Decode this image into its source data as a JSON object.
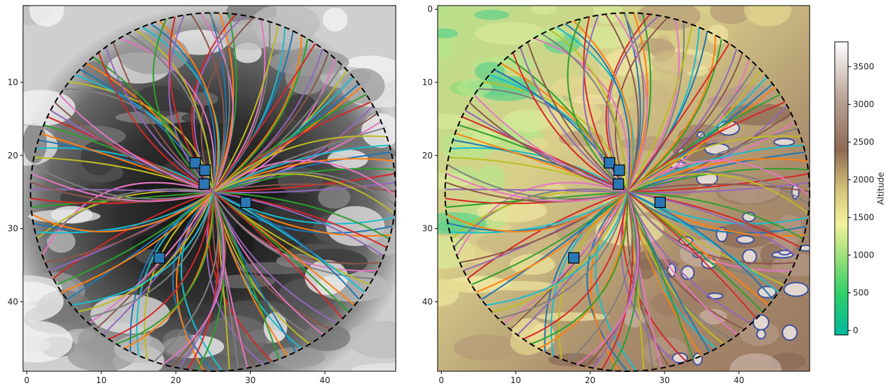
{
  "chart_data": [
    {
      "type": "heatmap",
      "panel": "left",
      "colormap": "greys",
      "xlim": [
        -0.5,
        49.5
      ],
      "ylim_inverted": [
        49.5,
        -0.5
      ],
      "x_ticks": [
        0,
        10,
        20,
        30,
        40
      ],
      "y_ticks": [
        10,
        20,
        30,
        40
      ],
      "x_tick_labels": [
        "0",
        "10",
        "20",
        "30",
        "40"
      ],
      "y_tick_labels": [
        "10",
        "20",
        "30",
        "40"
      ],
      "circle": {
        "center": [
          25,
          25
        ],
        "radius": 24.5,
        "style": "dashed",
        "color": "#000000"
      },
      "origin": [
        25,
        25
      ],
      "markers": [
        {
          "x": 22.6,
          "y": 21.0
        },
        {
          "x": 23.9,
          "y": 22.0
        },
        {
          "x": 23.8,
          "y": 23.9
        },
        {
          "x": 29.4,
          "y": 26.4
        },
        {
          "x": 17.8,
          "y": 34.0
        }
      ],
      "marker_color": "#2a77b4",
      "grid": false
    },
    {
      "type": "heatmap",
      "panel": "right",
      "colormap": "terrain",
      "xlim": [
        -0.5,
        49.5
      ],
      "ylim_inverted": [
        49.5,
        -0.5
      ],
      "x_ticks": [
        0,
        10,
        20,
        30,
        40
      ],
      "y_ticks": [
        0,
        10,
        20,
        30,
        40
      ],
      "x_tick_labels": [
        "0",
        "10",
        "20",
        "30",
        "40"
      ],
      "y_tick_labels": [
        "0",
        "10",
        "20",
        "30",
        "40"
      ],
      "circle": {
        "center": [
          25,
          25
        ],
        "radius": 24.5,
        "style": "dashed",
        "color": "#000000"
      },
      "origin": [
        25,
        25
      ],
      "markers": [
        {
          "x": 22.6,
          "y": 21.0
        },
        {
          "x": 23.9,
          "y": 22.0
        },
        {
          "x": 23.8,
          "y": 23.9
        },
        {
          "x": 29.4,
          "y": 26.4
        },
        {
          "x": 17.8,
          "y": 34.0
        }
      ],
      "marker_color": "#2a77b4",
      "grid": false,
      "colorbar": {
        "label": "Altitude",
        "min": -60,
        "max": 3830,
        "ticks": [
          0,
          500,
          1000,
          1500,
          2000,
          2500,
          3000,
          3500
        ],
        "tick_labels": [
          "0",
          "500",
          "1000",
          "1500",
          "2000",
          "2500",
          "3000",
          "3500"
        ]
      }
    }
  ],
  "paths": {
    "colors": [
      "#1f77b4",
      "#ff7f0e",
      "#2ca02c",
      "#d62728",
      "#9467bd",
      "#8c564b",
      "#e377c2",
      "#7f7f7f",
      "#bcbd22",
      "#17becf"
    ],
    "endpoint_angles_deg": [
      -88,
      -80,
      -72,
      -64,
      -56,
      -48,
      -40,
      -33,
      -26,
      -18,
      -10,
      -3,
      4,
      11,
      18,
      26,
      34,
      42,
      50,
      58,
      66,
      74,
      82,
      90,
      98,
      106,
      114,
      122,
      130,
      138,
      146,
      154,
      162,
      170,
      178,
      186,
      194,
      202,
      210,
      218,
      226,
      234,
      242,
      250,
      258,
      266
    ]
  }
}
